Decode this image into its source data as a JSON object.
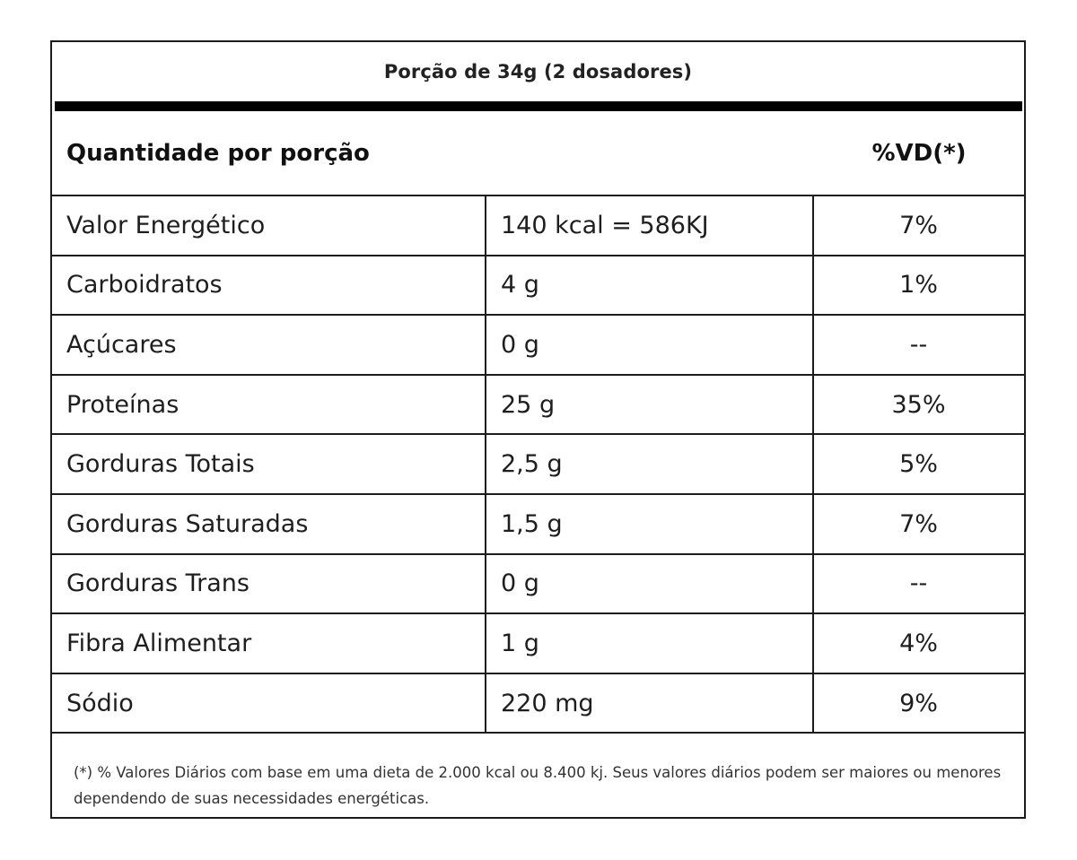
{
  "label": {
    "serving": "Porção de 34g (2 dosadores)",
    "header": {
      "quantity_label": "Quantidade por porção",
      "dv_label": "%VD(*)"
    },
    "rows": [
      {
        "nutrient": "Valor Energético",
        "amount": "140 kcal = 586KJ",
        "dv": "7%"
      },
      {
        "nutrient": "Carboidratos",
        "amount": "4 g",
        "dv": "1%"
      },
      {
        "nutrient": "Açúcares",
        "amount": "0 g",
        "dv": "--"
      },
      {
        "nutrient": "Proteínas",
        "amount": "25 g",
        "dv": "35%"
      },
      {
        "nutrient": "Gorduras Totais",
        "amount": "2,5 g",
        "dv": "5%"
      },
      {
        "nutrient": "Gorduras Saturadas",
        "amount": "1,5 g",
        "dv": "7%"
      },
      {
        "nutrient": "Gorduras Trans",
        "amount": "0 g",
        "dv": "--"
      },
      {
        "nutrient": "Fibra Alimentar",
        "amount": "1 g",
        "dv": "4%"
      },
      {
        "nutrient": "Sódio",
        "amount": "220 mg",
        "dv": "9%"
      }
    ],
    "footnote": "(*) % Valores Diários com base em uma dieta de 2.000 kcal ou 8.400 kj. Seus valores diários podem ser maiores ou menores dependendo de suas necessidades energéticas."
  }
}
